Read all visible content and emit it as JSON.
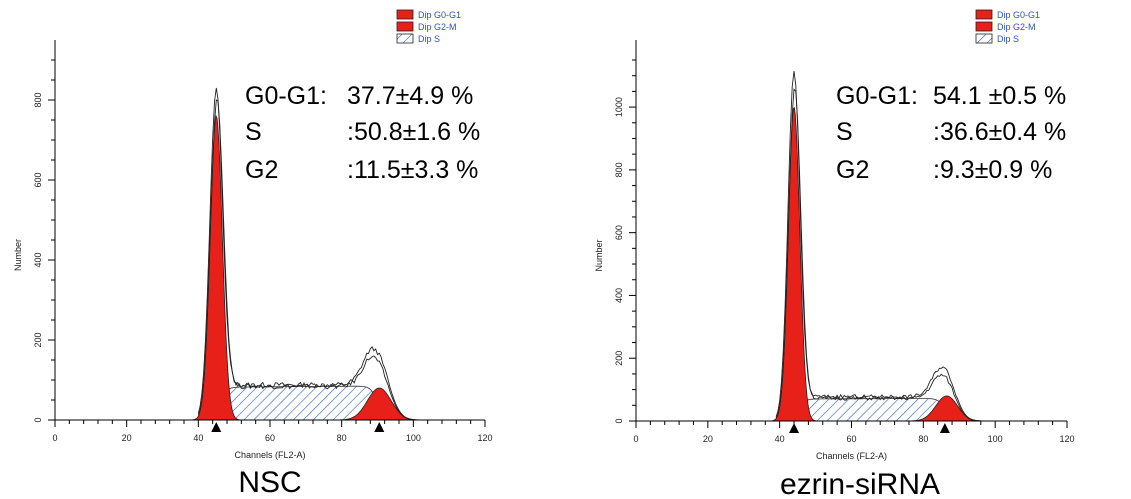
{
  "chart_data": [
    {
      "type": "area",
      "title": "NSC",
      "xlabel": "Channels (FL2-A)",
      "ylabel": "Number",
      "xlim": [
        0,
        120
      ],
      "ylim": [
        0,
        900
      ],
      "x_ticks": [
        0,
        20,
        40,
        60,
        80,
        100,
        120
      ],
      "y_ticks": [
        0,
        200,
        400,
        600,
        800
      ],
      "legend": {
        "placement": "top-right",
        "entries": [
          "Dip G0-G1",
          "Dip G2-M",
          "Dip S"
        ]
      },
      "stats": [
        {
          "label": "G0-G1:",
          "value": "37.7±4.9 %"
        },
        {
          "label": "S",
          "value": ":50.8±1.6 %"
        },
        {
          "label": "G2",
          "value": ":11.5±3.3 %"
        }
      ],
      "markers_x": [
        45,
        90.5
      ],
      "g1_peak": {
        "center": 45,
        "height": 760,
        "sigma": 1.7
      },
      "g2_peak": {
        "center": 90.5,
        "height": 80,
        "sigma": 3.3
      },
      "s_phase": {
        "start": 46,
        "end": 90,
        "level_start": 82,
        "level_end": 85
      },
      "data_curves": [
        {
          "peak_g1": 825,
          "peak_g2": 150,
          "s_level": 88
        },
        {
          "peak_g1": 800,
          "peak_g2": 130,
          "s_level": 84
        }
      ]
    },
    {
      "type": "area",
      "title": "ezrin-siRNA",
      "xlabel": "Channels (FL2-A)",
      "ylabel": "Number",
      "xlim": [
        0,
        120
      ],
      "ylim": [
        0,
        1150
      ],
      "x_ticks": [
        0,
        20,
        40,
        60,
        80,
        100,
        120
      ],
      "y_ticks": [
        0,
        200,
        400,
        600,
        800,
        1000
      ],
      "legend": {
        "placement": "top-right",
        "entries": [
          "Dip G0-G1",
          "Dip G2-M",
          "Dip S"
        ]
      },
      "stats": [
        {
          "label": "G0-G1:",
          "value": "54.1 ±0.5 %"
        },
        {
          "label": "S",
          "value": ":36.6±0.4 %"
        },
        {
          "label": "G2",
          "value": ":9.3±0.9 %"
        }
      ],
      "markers_x": [
        44,
        86
      ],
      "g1_peak": {
        "center": 44,
        "height": 1000,
        "sigma": 1.6
      },
      "g2_peak": {
        "center": 86.5,
        "height": 80,
        "sigma": 3.0
      },
      "s_phase": {
        "start": 45,
        "end": 86,
        "level_start": 70,
        "level_end": 72
      },
      "data_curves": [
        {
          "peak_g1": 1110,
          "peak_g2": 150,
          "s_level": 78
        },
        {
          "peak_g1": 1060,
          "peak_g2": 125,
          "s_level": 72
        }
      ]
    }
  ]
}
